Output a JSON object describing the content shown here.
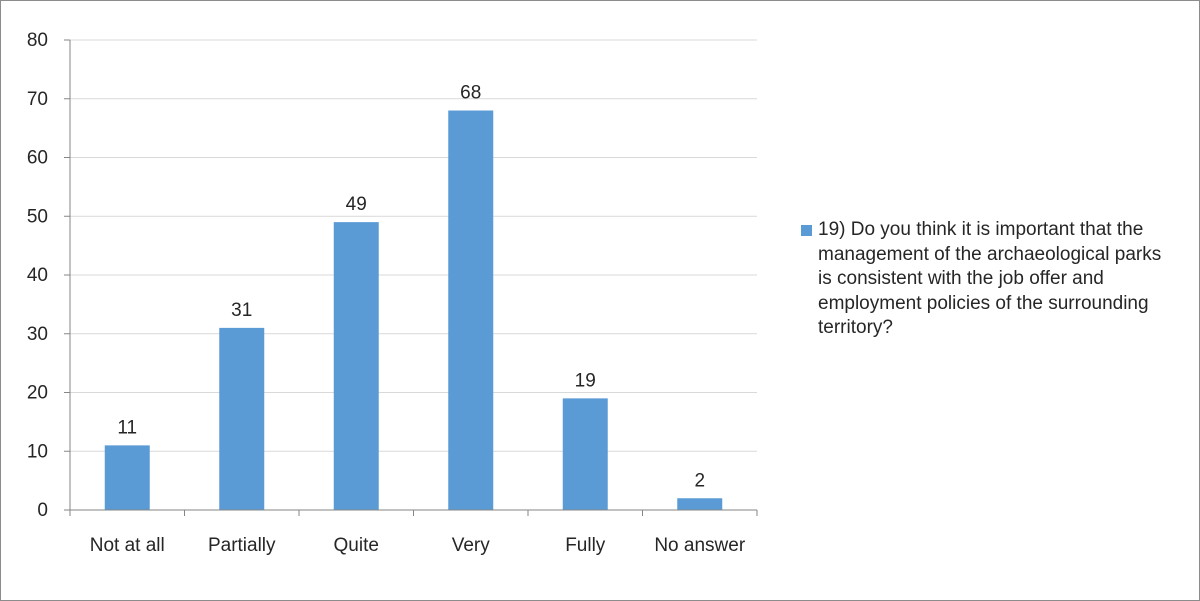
{
  "chart_data": {
    "type": "bar",
    "categories": [
      "Not at all",
      "Partially",
      "Quite",
      "Very",
      "Fully",
      "No answer"
    ],
    "series": [
      {
        "name": "19) Do you think it is important that the management of the archaeological parks is consistent with the job offer and employment policies of the surrounding territory?",
        "values": [
          11,
          31,
          49,
          68,
          19,
          2
        ]
      }
    ],
    "ylim": [
      0,
      80
    ],
    "yticks": [
      0,
      10,
      20,
      30,
      40,
      50,
      60,
      70,
      80
    ],
    "grid": true,
    "legend_position": "right",
    "bar_color": "#5b9bd5",
    "grid_color": "#d9d9d9",
    "axis_color": "#868686"
  }
}
